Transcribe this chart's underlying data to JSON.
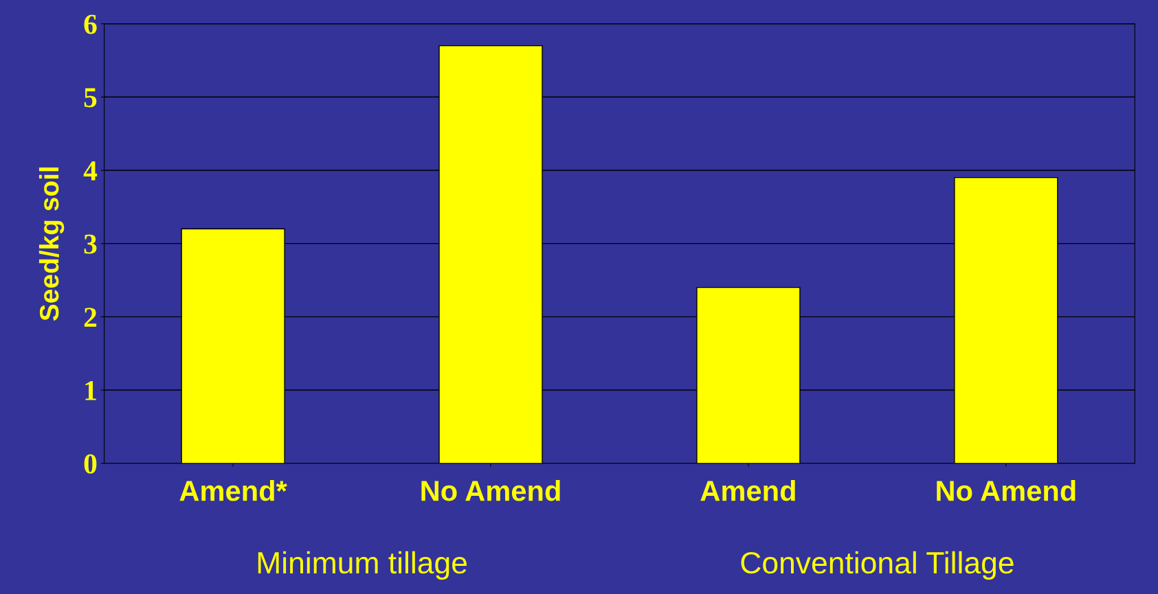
{
  "chart_data": {
    "type": "bar",
    "categories": [
      "Amend*",
      "No Amend",
      "Amend",
      "No Amend"
    ],
    "values": [
      3.2,
      5.7,
      2.4,
      3.9
    ],
    "color": "#ffff00",
    "ylabel": "Seed/kg soil",
    "ylim": [
      0,
      6
    ],
    "yticks": [
      0,
      1,
      2,
      3,
      4,
      5,
      6
    ],
    "grid": "y",
    "annotations": [
      "Minimum tillage",
      "Conventional Tillage"
    ]
  }
}
